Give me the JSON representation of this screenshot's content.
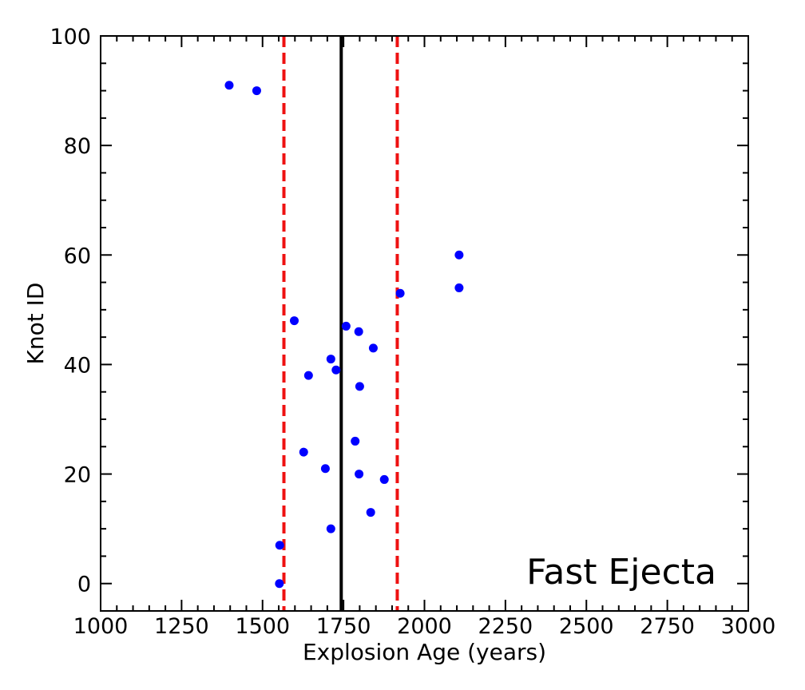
{
  "chart_data": {
    "type": "scatter",
    "xlabel": "Explosion Age (years)",
    "ylabel": "Knot ID",
    "xlim": [
      1000,
      3000
    ],
    "ylim": [
      -5,
      100
    ],
    "x_ticks": [
      1000,
      1250,
      1500,
      1750,
      2000,
      2250,
      2500,
      2750,
      3000
    ],
    "y_ticks": [
      0,
      20,
      40,
      60,
      80,
      100
    ],
    "grid": false,
    "annotation": "Fast Ejecta",
    "point_color": "#0000ff",
    "points": [
      {
        "x": 1397,
        "y": 91
      },
      {
        "x": 1482,
        "y": 90
      },
      {
        "x": 1552,
        "y": 0
      },
      {
        "x": 1553,
        "y": 7
      },
      {
        "x": 1598,
        "y": 48
      },
      {
        "x": 1627,
        "y": 24
      },
      {
        "x": 1642,
        "y": 38
      },
      {
        "x": 1694,
        "y": 21
      },
      {
        "x": 1711,
        "y": 41
      },
      {
        "x": 1711,
        "y": 10
      },
      {
        "x": 1727,
        "y": 39
      },
      {
        "x": 1758,
        "y": 47
      },
      {
        "x": 1786,
        "y": 26
      },
      {
        "x": 1797,
        "y": 46
      },
      {
        "x": 1798,
        "y": 20
      },
      {
        "x": 1800,
        "y": 36
      },
      {
        "x": 1834,
        "y": 13
      },
      {
        "x": 1842,
        "y": 43
      },
      {
        "x": 1876,
        "y": 19
      },
      {
        "x": 1925,
        "y": 53
      },
      {
        "x": 2107,
        "y": 60
      },
      {
        "x": 2107,
        "y": 54
      }
    ],
    "reference_lines": [
      {
        "x": 1743,
        "color": "#000000",
        "style": "solid"
      },
      {
        "x": 1566,
        "color": "#ee1111",
        "style": "dashed"
      },
      {
        "x": 1916,
        "color": "#ee1111",
        "style": "dashed"
      }
    ]
  }
}
